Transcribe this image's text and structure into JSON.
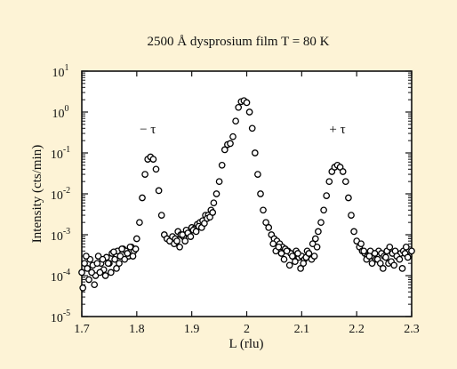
{
  "chart_data": {
    "type": "scatter",
    "title": "2500 Å dysprosium film T = 80 K",
    "xlabel": "L (rlu)",
    "ylabel": "Intensity (cts/min)",
    "xlim": [
      1.7,
      2.3
    ],
    "ylim": [
      1e-05,
      10
    ],
    "yscale": "log",
    "grid": false,
    "x_ticks": [
      "1.7",
      "1.8",
      "1.9",
      "2",
      "2.1",
      "2.2",
      "2.3"
    ],
    "y_ticks": [
      {
        "base": "10",
        "exp": "-5",
        "value": 1e-05
      },
      {
        "base": "10",
        "exp": "-4",
        "value": 0.0001
      },
      {
        "base": "10",
        "exp": "-3",
        "value": 0.001
      },
      {
        "base": "10",
        "exp": "-2",
        "value": 0.01
      },
      {
        "base": "10",
        "exp": "-1",
        "value": 0.1
      },
      {
        "base": "10",
        "exp": "0",
        "value": 1
      },
      {
        "base": "10",
        "exp": "1",
        "value": 10
      }
    ],
    "annotations": [
      {
        "text": "− τ",
        "x": 1.82,
        "y": 0.3
      },
      {
        "text": "+ τ",
        "x": 2.165,
        "y": 0.3
      }
    ],
    "series": [
      {
        "x": [
          1.7,
          1.705,
          1.71,
          1.715,
          1.72,
          1.725,
          1.73,
          1.735,
          1.74,
          1.745,
          1.75,
          1.755,
          1.76,
          1.765,
          1.77,
          1.775,
          1.78,
          1.785,
          1.79,
          1.795,
          1.8,
          1.805,
          1.81,
          1.815,
          1.82,
          1.825,
          1.83,
          1.835,
          1.84,
          1.845,
          1.85,
          1.855,
          1.86,
          1.865,
          1.87,
          1.875,
          1.88,
          1.885,
          1.89,
          1.895,
          1.9,
          1.905,
          1.91,
          1.915,
          1.92,
          1.925,
          1.93,
          1.935,
          1.94,
          1.945,
          1.95,
          1.955,
          1.96,
          1.965,
          1.97,
          1.975,
          1.98,
          1.985,
          1.99,
          1.995,
          2.0,
          2.005,
          2.01,
          2.015,
          2.02,
          2.025,
          2.03,
          2.035,
          2.04,
          2.045,
          2.05,
          2.055,
          2.06,
          2.065,
          2.07,
          2.075,
          2.08,
          2.085,
          2.09,
          2.095,
          2.1,
          2.105,
          2.11,
          2.115,
          2.12,
          2.125,
          2.13,
          2.135,
          2.14,
          2.145,
          2.15,
          2.155,
          2.16,
          2.165,
          2.17,
          2.175,
          2.18,
          2.185,
          2.19,
          2.195,
          2.2,
          2.205,
          2.21,
          2.215,
          2.22,
          2.225,
          2.23,
          2.235,
          2.24,
          2.245,
          2.25,
          2.255,
          2.26,
          2.265,
          2.27,
          2.275,
          2.28,
          2.285,
          2.29,
          2.295,
          2.3
        ],
        "y": [
          0.00012,
          0.0002,
          0.00015,
          0.00025,
          0.00018,
          0.0001,
          0.0003,
          0.0002,
          0.00014,
          0.00028,
          0.0002,
          0.00035,
          0.00025,
          0.0004,
          0.0003,
          0.00045,
          0.0004,
          0.0003,
          0.0005,
          0.0004,
          0.0008,
          0.002,
          0.008,
          0.03,
          0.07,
          0.08,
          0.07,
          0.04,
          0.012,
          0.003,
          0.001,
          0.0008,
          0.0007,
          0.0009,
          0.0008,
          0.0012,
          0.001,
          0.0009,
          0.0013,
          0.0011,
          0.0015,
          0.0014,
          0.0018,
          0.002,
          0.0022,
          0.003,
          0.003,
          0.004,
          0.006,
          0.01,
          0.02,
          0.05,
          0.12,
          0.16,
          0.17,
          0.25,
          0.6,
          1.3,
          1.8,
          1.9,
          1.7,
          1.0,
          0.4,
          0.1,
          0.03,
          0.01,
          0.004,
          0.002,
          0.0015,
          0.001,
          0.0008,
          0.0007,
          0.0006,
          0.0005,
          0.00045,
          0.0004,
          0.00035,
          0.0003,
          0.0004,
          0.00028,
          0.0003,
          0.00025,
          0.0004,
          0.0003,
          0.0006,
          0.0008,
          0.0012,
          0.002,
          0.004,
          0.009,
          0.02,
          0.035,
          0.045,
          0.05,
          0.045,
          0.035,
          0.02,
          0.008,
          0.003,
          0.0012,
          0.0007,
          0.0005,
          0.0004,
          0.00035,
          0.0003,
          0.0004,
          0.0003,
          0.00025,
          0.0004,
          0.00035,
          0.0003,
          0.0004,
          0.0005,
          0.00035,
          0.0004,
          0.0003,
          0.00035,
          0.0004,
          0.0005,
          0.0003,
          0.0004
        ]
      },
      {
        "x": [
          1.702,
          1.708,
          1.713,
          1.718,
          1.723,
          1.728,
          1.733,
          1.738,
          1.743,
          1.748,
          1.753,
          1.758,
          1.763,
          1.768,
          1.773,
          1.778,
          1.783,
          1.788,
          1.793,
          1.798,
          1.868,
          1.873,
          1.878,
          1.883,
          1.888,
          1.893,
          1.898,
          1.903,
          1.908,
          1.913,
          1.918,
          1.923,
          1.928,
          1.933,
          1.938,
          2.048,
          2.053,
          2.058,
          2.063,
          2.068,
          2.073,
          2.078,
          2.083,
          2.088,
          2.093,
          2.098,
          2.103,
          2.108,
          2.113,
          2.118,
          2.123,
          2.128,
          2.208,
          2.213,
          2.218,
          2.223,
          2.228,
          2.233,
          2.238,
          2.243,
          2.248,
          2.253,
          2.258,
          2.263,
          2.268,
          2.273,
          2.278,
          2.283,
          2.288,
          2.293
        ],
        "y": [
          5e-05,
          0.0003,
          8e-05,
          0.00012,
          6e-05,
          0.0002,
          0.00012,
          0.00025,
          0.0001,
          0.0002,
          0.00012,
          0.00038,
          0.00015,
          0.0002,
          0.00045,
          0.00025,
          0.00035,
          0.0005,
          0.0003,
          0.00045,
          0.0006,
          0.0007,
          0.0005,
          0.001,
          0.0007,
          0.0011,
          0.0009,
          0.0013,
          0.0012,
          0.0016,
          0.0015,
          0.0019,
          0.0025,
          0.0027,
          0.0035,
          0.0006,
          0.0004,
          0.0005,
          0.00035,
          0.00025,
          0.0004,
          0.00018,
          0.0003,
          0.00022,
          0.00035,
          0.00015,
          0.0002,
          0.00028,
          0.00035,
          0.00025,
          0.0003,
          0.0005,
          0.0006,
          0.0004,
          0.00025,
          0.0003,
          0.0002,
          0.00035,
          0.00025,
          0.0002,
          0.00015,
          0.00028,
          0.0002,
          0.00022,
          0.00018,
          0.0003,
          0.00025,
          0.00015,
          0.00035,
          0.00028
        ]
      }
    ]
  }
}
